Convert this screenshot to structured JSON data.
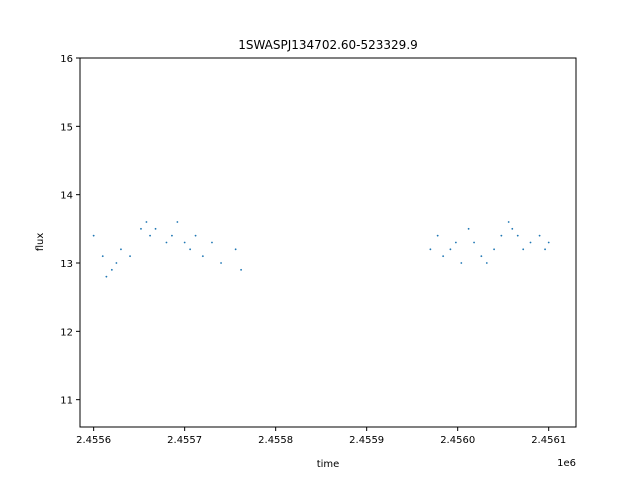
{
  "chart_data": {
    "type": "scatter",
    "title": "1SWASPJ134702.60-523329.9",
    "xlabel": "time",
    "ylabel": "flux",
    "x_offset_label": "1e6",
    "xlim": [
      2455585,
      2456130
    ],
    "ylim": [
      10.6,
      16.0
    ],
    "x_ticks": [
      2455600,
      2455700,
      2455800,
      2455900,
      2456000,
      2456100
    ],
    "x_tick_labels": [
      "2.4556",
      "2.4557",
      "2.4558",
      "2.4559",
      "2.4560",
      "2.4561"
    ],
    "y_ticks": [
      11,
      12,
      13,
      14,
      15,
      16
    ],
    "y_tick_labels": [
      "11",
      "12",
      "13",
      "14",
      "15",
      "16"
    ],
    "grid": false,
    "legend": "none",
    "marker_color": "#1f77b4",
    "series": [
      {
        "values": [
          [
            2455600,
            13.4
          ],
          [
            2455610,
            13.1
          ],
          [
            2455614,
            12.8
          ],
          [
            2455620,
            12.9
          ],
          [
            2455625,
            13.0
          ],
          [
            2455630,
            13.2
          ],
          [
            2455640,
            13.1
          ],
          [
            2455652,
            13.5
          ],
          [
            2455658,
            13.6
          ],
          [
            2455662,
            13.4
          ],
          [
            2455668,
            13.5
          ],
          [
            2455680,
            13.3
          ],
          [
            2455686,
            13.4
          ],
          [
            2455692,
            13.6
          ],
          [
            2455700,
            13.3
          ],
          [
            2455706,
            13.2
          ],
          [
            2455712,
            13.4
          ],
          [
            2455720,
            13.1
          ],
          [
            2455730,
            13.3
          ],
          [
            2455740,
            13.0
          ],
          [
            2455756,
            13.2
          ],
          [
            2455762,
            12.9
          ],
          [
            2455970,
            13.2
          ],
          [
            2455978,
            13.4
          ],
          [
            2455984,
            13.1
          ],
          [
            2455992,
            13.2
          ],
          [
            2455998,
            13.3
          ],
          [
            2456004,
            13.0
          ],
          [
            2456012,
            13.5
          ],
          [
            2456018,
            13.3
          ],
          [
            2456026,
            13.1
          ],
          [
            2456032,
            13.0
          ],
          [
            2456040,
            13.2
          ],
          [
            2456048,
            13.4
          ],
          [
            2456056,
            13.6
          ],
          [
            2456060,
            13.5
          ],
          [
            2456066,
            13.4
          ],
          [
            2456072,
            13.2
          ],
          [
            2456080,
            13.3
          ],
          [
            2456090,
            13.4
          ],
          [
            2456096,
            13.2
          ],
          [
            2456100,
            13.3
          ]
        ]
      }
    ]
  }
}
